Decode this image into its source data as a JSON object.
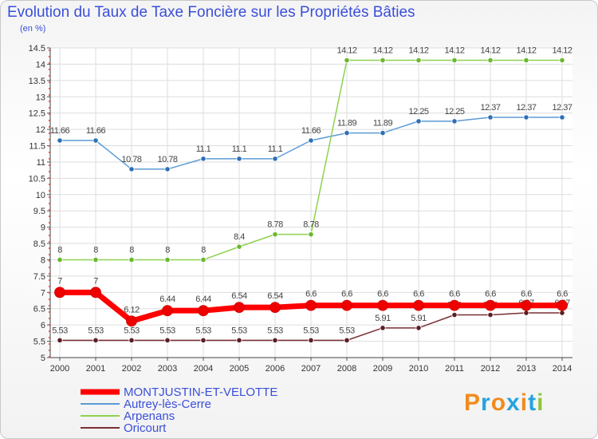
{
  "title": "Evolution du Taux de Taxe Foncière sur les Propriétés Bâties",
  "unit": "(en %)",
  "brand": "Proxiti",
  "chart_data": {
    "type": "line",
    "title": "Evolution du Taux de Taxe Foncière sur les Propriétés Bâties",
    "ylabel": "(en %)",
    "ylim": [
      5,
      14.5
    ],
    "ystep": 0.5,
    "grid": true,
    "x": [
      "2000",
      "2001",
      "2002",
      "2003",
      "2004",
      "2005",
      "2006",
      "2007",
      "2008",
      "2009",
      "2010",
      "2011",
      "2012",
      "2013",
      "2014"
    ],
    "series": [
      {
        "name": "Autrey-lès-Cerre",
        "color": "#5b9bd5",
        "marker": "#2f6fb5",
        "width": 1.5,
        "values": [
          11.66,
          11.66,
          10.78,
          10.78,
          11.1,
          11.1,
          11.1,
          11.66,
          11.89,
          11.89,
          12.25,
          12.25,
          12.37,
          12.37,
          12.37
        ],
        "labels": [
          "11.66",
          "11.66",
          "10.78",
          "10.78",
          "11.1",
          "11.1",
          "11.1",
          "11.66",
          "11.89",
          "11.89",
          "12.25",
          "12.25",
          "12.37",
          "12.37",
          "12.37"
        ]
      },
      {
        "name": "Arpenans",
        "color": "#8fd14f",
        "marker": "#6ab82e",
        "width": 1.5,
        "values": [
          8,
          8,
          8,
          8,
          8,
          8.4,
          8.78,
          8.78,
          14.12,
          14.12,
          14.12,
          14.12,
          14.12,
          14.12,
          14.12
        ],
        "labels": [
          "8",
          "8",
          "8",
          "8",
          "8",
          "8.4",
          "8.78",
          "8.78",
          "14.12",
          "14.12",
          "14.12",
          "14.12",
          "14.12",
          "14.12",
          "14.12"
        ]
      },
      {
        "name": "Oricourt",
        "color": "#7a2f35",
        "marker": "#5a1f25",
        "width": 1.5,
        "values": [
          5.53,
          5.53,
          5.53,
          5.53,
          5.53,
          5.53,
          5.53,
          5.53,
          5.53,
          5.91,
          5.91,
          6.31,
          6.31,
          6.37,
          6.37
        ],
        "labels": [
          "5.53",
          "5.53",
          "5.53",
          "5.53",
          "5.53",
          "5.53",
          "5.53",
          "5.53",
          "5.53",
          "5.91",
          "5.91",
          "6.31",
          "6.31",
          "6.37",
          "6.37"
        ]
      },
      {
        "name": "MONTJUSTIN-ET-VELOTTE",
        "color": "#ff0000",
        "marker": "#ee0000",
        "width": 7,
        "values": [
          7,
          7,
          6.12,
          6.44,
          6.44,
          6.54,
          6.54,
          6.6,
          6.6,
          6.6,
          6.6,
          6.6,
          6.6,
          6.6,
          6.6
        ],
        "labels": [
          "7",
          "7",
          "6.12",
          "6.44",
          "6.44",
          "6.54",
          "6.54",
          "6.6",
          "6.6",
          "6.6",
          "6.6",
          "6.6",
          "6.6",
          "6.6",
          "6.6"
        ]
      }
    ],
    "legend": [
      "MONTJUSTIN-ET-VELOTTE",
      "Autrey-lès-Cerre",
      "Arpenans",
      "Oricourt"
    ]
  }
}
